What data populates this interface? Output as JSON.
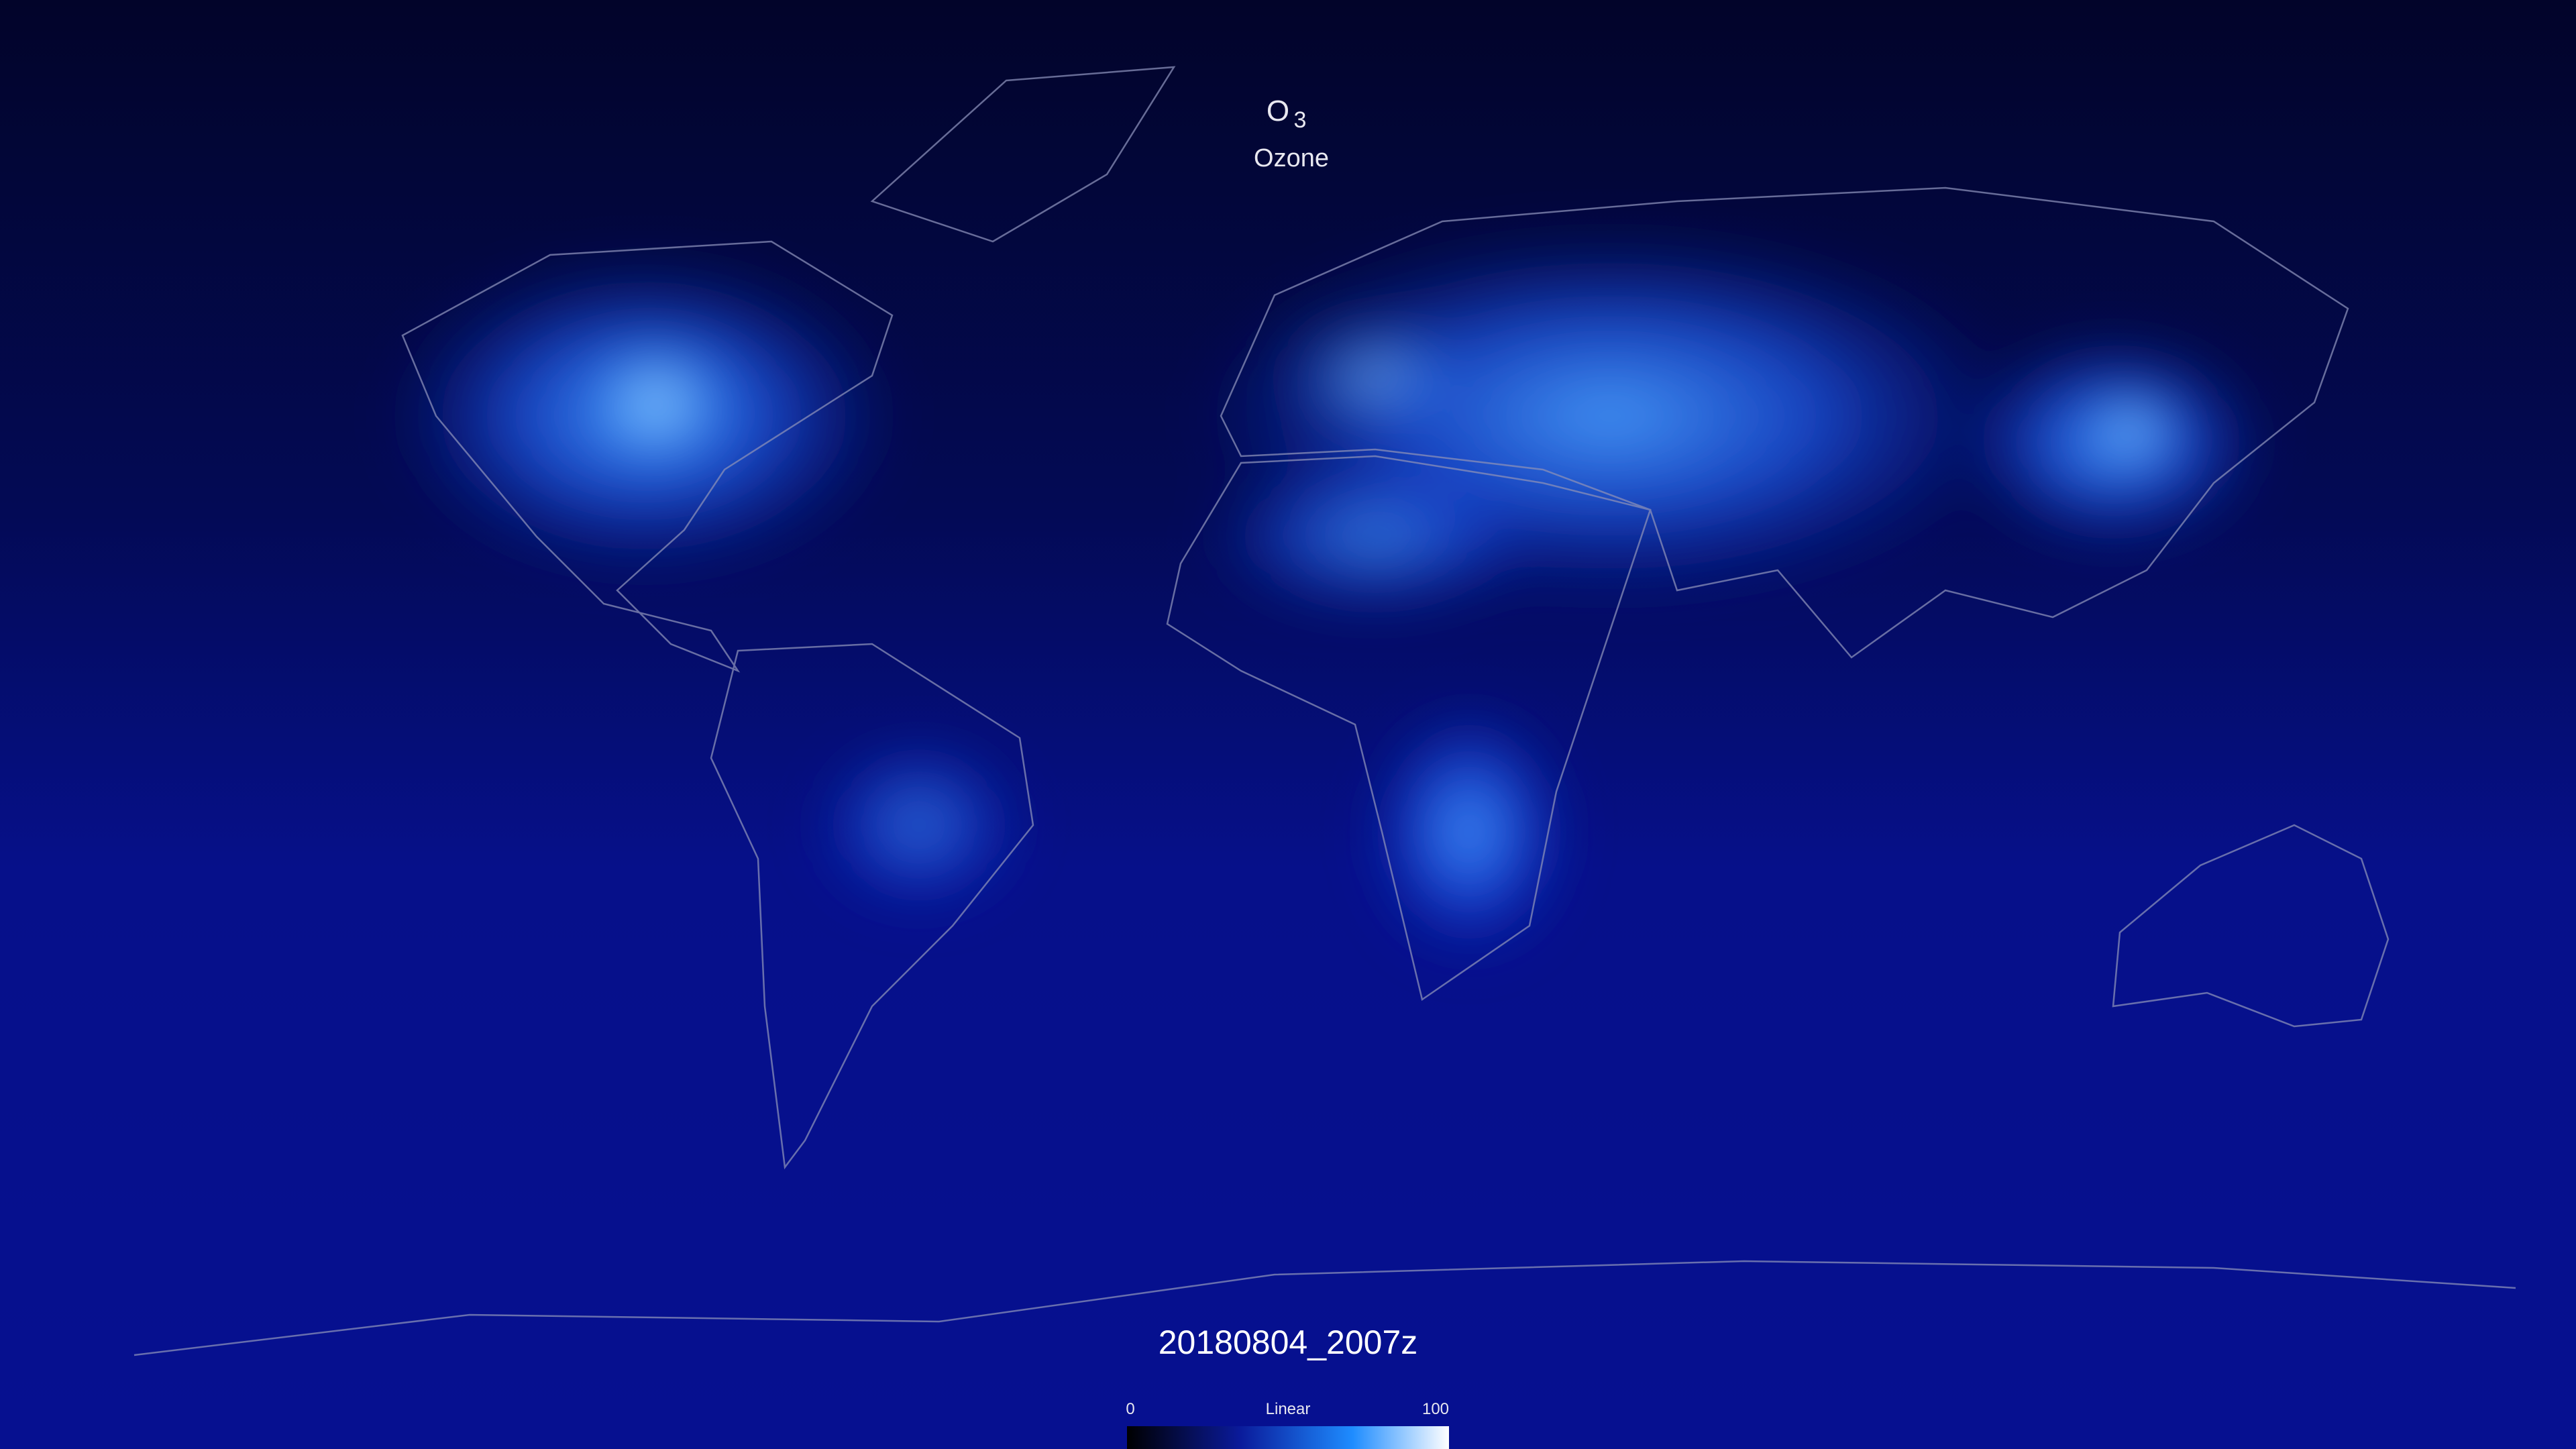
{
  "title": {
    "formula": "O",
    "subscript": "3",
    "name": "Ozone"
  },
  "timestamp": "20180804_2007z",
  "colorbar": {
    "min": 0,
    "max": 100,
    "scale": "Linear"
  }
}
